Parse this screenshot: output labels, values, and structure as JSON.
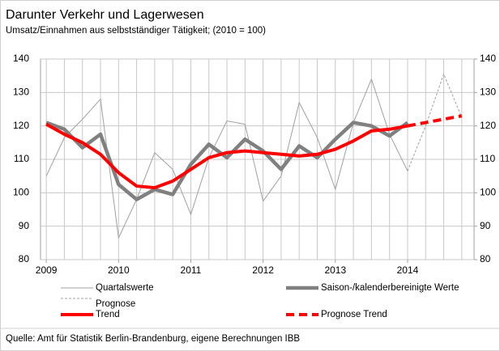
{
  "chart_data": {
    "type": "line",
    "title": "Darunter Verkehr und Lagerwesen",
    "subtitle": "Umsatz/Einnahmen aus selbstständiger Tätigkeit; (2010 = 100)",
    "source": "Quelle: Amt für Statistik Berlin-Brandenburg, eigene Berechnungen IBB",
    "x": [
      2009,
      2009.25,
      2009.5,
      2009.75,
      2010,
      2010.25,
      2010.5,
      2010.75,
      2011,
      2011.25,
      2011.5,
      2011.75,
      2012,
      2012.25,
      2012.5,
      2012.75,
      2013,
      2013.25,
      2013.5,
      2013.75,
      2014,
      2014.25,
      2014.5,
      2014.75
    ],
    "xlim": [
      2008.92,
      2014.92
    ],
    "xticks": [
      2009,
      2010,
      2011,
      2012,
      2013,
      2014
    ],
    "ylim": [
      80,
      140
    ],
    "yticks": [
      80,
      90,
      100,
      110,
      120,
      130,
      140
    ],
    "y2lim": [
      80,
      140
    ],
    "y2ticks": [
      80,
      90,
      100,
      110,
      120,
      130,
      140
    ],
    "grid": true,
    "series": [
      {
        "name": "Quartalswerte",
        "color": "#a0a0a0",
        "line_width": 1,
        "dashed": false,
        "values": [
          105,
          116.5,
          122,
          128,
          86.5,
          98,
          112,
          107,
          93.5,
          110.5,
          121.5,
          120.5,
          97.5,
          105,
          127,
          116.5,
          101,
          121,
          134,
          117.5,
          106.5,
          null,
          null,
          null
        ]
      },
      {
        "name": "Saison-/kalenderbereinigte Werte",
        "color": "#808080",
        "line_width": 4.5,
        "dashed": false,
        "values": [
          121,
          119,
          113.5,
          117.5,
          102.5,
          98,
          101,
          99.5,
          108.5,
          114.5,
          110.5,
          116,
          112.5,
          107,
          114,
          110.5,
          116,
          121,
          120,
          117,
          121,
          null,
          null,
          null
        ]
      },
      {
        "name": "Prognose",
        "color": "#a0a0a0",
        "line_width": 1,
        "dashed": true,
        "values": [
          null,
          null,
          null,
          null,
          null,
          null,
          null,
          null,
          null,
          null,
          null,
          null,
          null,
          null,
          null,
          null,
          null,
          null,
          null,
          null,
          106.5,
          120,
          135.5,
          122.5
        ]
      },
      {
        "name": "Trend",
        "color": "#ff0000",
        "line_width": 4,
        "dashed": false,
        "values": [
          120.5,
          117.5,
          115,
          111.5,
          106,
          102,
          101.5,
          103.5,
          107,
          110.5,
          112,
          112.5,
          112,
          111.5,
          111,
          111.5,
          113,
          115.5,
          118.5,
          119,
          120,
          null,
          null,
          null
        ]
      },
      {
        "name": "Prognose Trend",
        "color": "#ff0000",
        "line_width": 4,
        "dashed": true,
        "values": [
          null,
          null,
          null,
          null,
          null,
          null,
          null,
          null,
          null,
          null,
          null,
          null,
          null,
          null,
          null,
          null,
          null,
          null,
          null,
          null,
          120,
          121,
          122,
          123
        ]
      }
    ]
  }
}
